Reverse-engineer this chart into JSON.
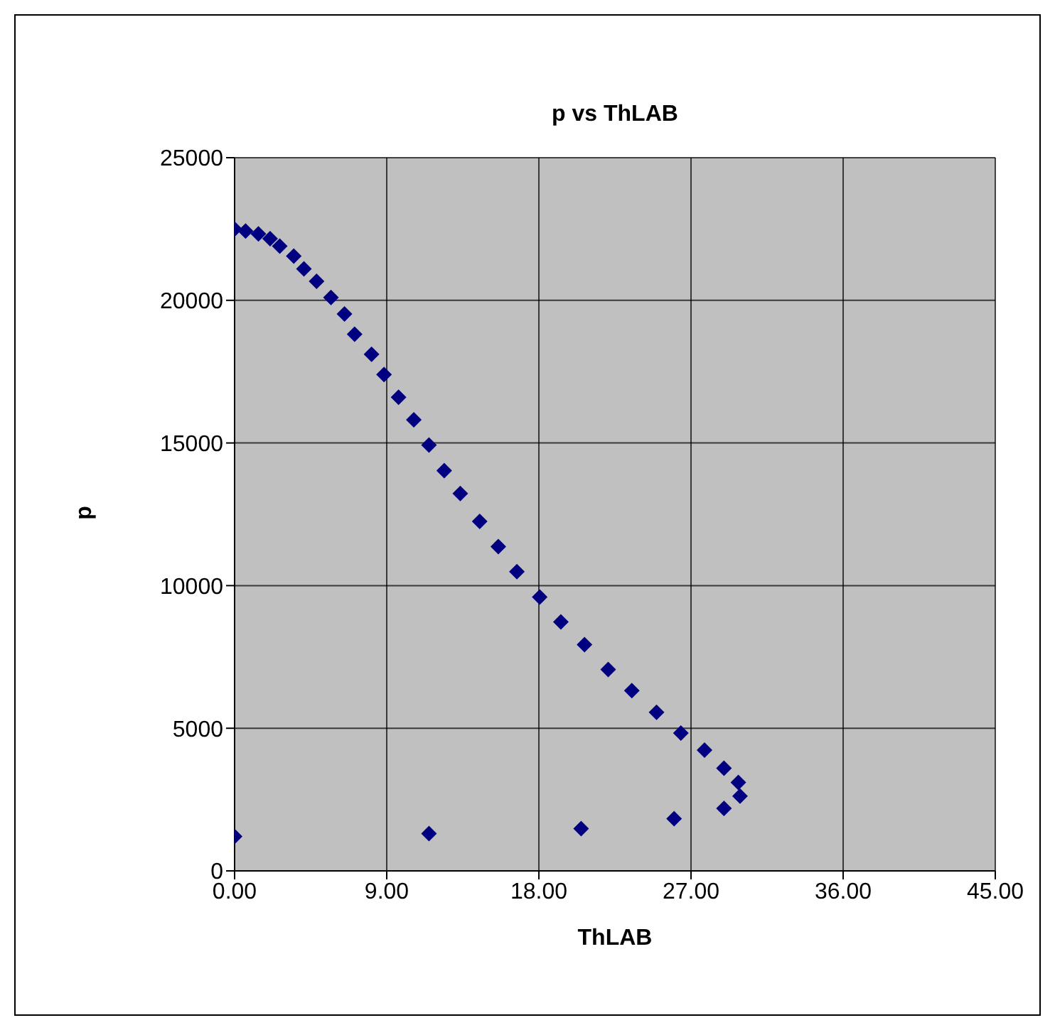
{
  "chart_data": {
    "type": "scatter",
    "title": "p vs ThLAB",
    "xlabel": "ThLAB",
    "ylabel": "p",
    "x": [
      0,
      0.65,
      1.41,
      2.1,
      2.67,
      3.5,
      4.1,
      4.85,
      5.7,
      6.5,
      7.1,
      8.1,
      8.84,
      9.7,
      10.6,
      11.5,
      12.4,
      13.35,
      14.5,
      15.6,
      16.7,
      18.05,
      19.3,
      20.7,
      22.1,
      23.5,
      24.96,
      26.4,
      27.8,
      28.95,
      29.8,
      29.9,
      28.95,
      26.0,
      20.5,
      11.5,
      0
    ],
    "series": [
      {
        "color": "#000080",
        "values": [
          22500,
          22430,
          22330,
          22160,
          21900,
          21550,
          21100,
          20670,
          20100,
          19520,
          18810,
          18110,
          17400,
          16600,
          15810,
          14930,
          14030,
          13230,
          12250,
          11370,
          10490,
          9600,
          8730,
          7930,
          7060,
          6320,
          5560,
          4830,
          4230,
          3600,
          3100,
          2620,
          2190,
          1830,
          1480,
          1310,
          1210
        ]
      }
    ],
    "xlim": [
      0,
      45
    ],
    "xticks": [
      {
        "value": 0,
        "label": "0.00"
      },
      {
        "value": 9,
        "label": "9.00"
      },
      {
        "value": 18,
        "label": "18.00"
      },
      {
        "value": 27,
        "label": "27.00"
      },
      {
        "value": 36,
        "label": "36.00"
      },
      {
        "value": 45,
        "label": "45.00"
      }
    ],
    "ylim": [
      0,
      25000
    ],
    "yticks": [
      0,
      5000,
      10000,
      15000,
      20000,
      25000
    ],
    "grid": true,
    "marker": "diamond"
  }
}
